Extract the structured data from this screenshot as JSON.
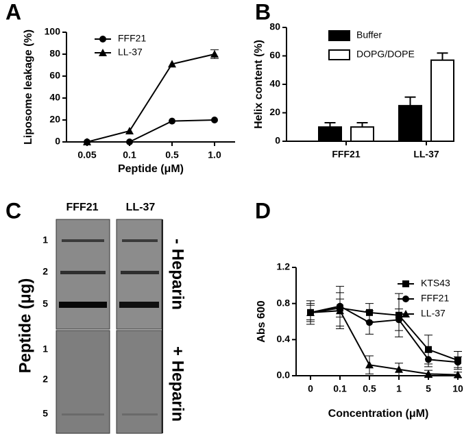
{
  "chart_data": [
    {
      "type": "line",
      "panel": "A",
      "xlabel": "Peptide (μM)",
      "ylabel": "Liposome leakage (%)",
      "categories": [
        "0.05",
        "0.1",
        "0.5",
        "1.0"
      ],
      "series": [
        {
          "name": "FFF21",
          "color": "#000000",
          "marker": "circle",
          "values": [
            0,
            0,
            19,
            20
          ]
        },
        {
          "name": "LL-37",
          "color": "#000000",
          "marker": "triangle",
          "values": [
            0,
            10,
            71,
            80
          ],
          "errors": [
            null,
            null,
            null,
            4
          ]
        }
      ],
      "ylim": [
        0,
        100
      ],
      "yticks": [
        0,
        20,
        40,
        60,
        80,
        100
      ]
    },
    {
      "type": "bar",
      "panel": "B",
      "ylabel": "Helix content (%)",
      "categories": [
        "FFF21",
        "LL-37"
      ],
      "series": [
        {
          "name": "Buffer",
          "color": "#000000",
          "values": [
            10,
            25
          ],
          "errors": [
            3,
            6
          ]
        },
        {
          "name": "DOPG/DOPE",
          "color": "#ffffff",
          "values": [
            10,
            57
          ],
          "errors": [
            3,
            5
          ]
        }
      ],
      "ylim": [
        0,
        80
      ],
      "yticks": [
        0,
        20,
        40,
        60,
        80
      ]
    },
    {
      "type": "line",
      "panel": "D",
      "xlabel": "Concentration (μM)",
      "ylabel": "Abs 600",
      "categories": [
        "0",
        "0.1",
        "0.5",
        "1",
        "5",
        "10"
      ],
      "series": [
        {
          "name": "KTS43",
          "color": "#000000",
          "marker": "square",
          "values": [
            0.7,
            0.75,
            0.7,
            0.67,
            0.29,
            0.17
          ],
          "errors": [
            0.13,
            0.1,
            0.1,
            0.24,
            0.16,
            0.1
          ]
        },
        {
          "name": "FFF21",
          "color": "#000000",
          "marker": "circle",
          "values": [
            0.7,
            0.77,
            0.59,
            0.62,
            0.18,
            0.15
          ],
          "errors": [
            0.08,
            0.22,
            0.13,
            0.12,
            0.08,
            0.06
          ]
        },
        {
          "name": "LL-37",
          "color": "#000000",
          "marker": "triangle",
          "values": [
            0.7,
            0.72,
            0.12,
            0.07,
            0.02,
            0.01
          ],
          "errors": [
            0.1,
            0.2,
            0.1,
            0.07,
            0.04,
            0.03
          ]
        }
      ],
      "ylim": [
        0,
        1.2
      ],
      "yticks": [
        {
          "value": 0,
          "label": "0.0"
        },
        0.4,
        0.8,
        1.2
      ]
    }
  ],
  "blot": {
    "panel": "C",
    "columns": [
      "FFF21",
      "LL-37"
    ],
    "ylabel": "Peptide (μg)",
    "top": {
      "label": "- Heparin",
      "rows": [
        "1",
        "2",
        "5"
      ]
    },
    "bottom": {
      "label": "+ Heparin",
      "rows": [
        "1",
        "2",
        "5"
      ]
    }
  }
}
